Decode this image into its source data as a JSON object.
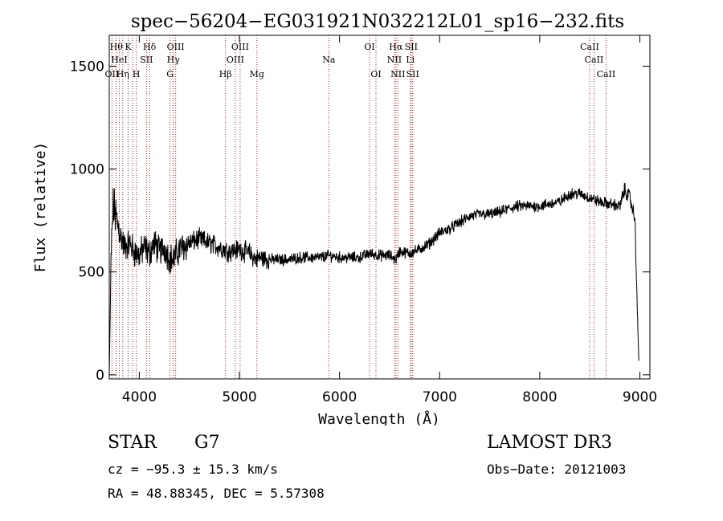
{
  "chart_data": {
    "type": "line",
    "title": "spec−56204−EG031921N032212L01_sp16−232.fits",
    "xlabel": "Wavelength (Å)",
    "ylabel": "Flux (relative)",
    "xlim": [
      3700,
      9100
    ],
    "ylim": [
      -20,
      1650
    ],
    "xticks": [
      4000,
      5000,
      6000,
      7000,
      8000,
      9000
    ],
    "yticks": [
      0,
      500,
      1000,
      1500
    ],
    "series": [
      {
        "name": "flux",
        "x": [
          3700,
          3720,
          3740,
          3760,
          3800,
          3850,
          3900,
          3950,
          4000,
          4050,
          4100,
          4150,
          4200,
          4250,
          4300,
          4340,
          4400,
          4500,
          4600,
          4700,
          4800,
          4900,
          5000,
          5100,
          5170,
          5200,
          5300,
          5400,
          5500,
          5600,
          5700,
          5800,
          5900,
          6000,
          6100,
          6200,
          6300,
          6400,
          6500,
          6563,
          6600,
          6700,
          6800,
          6900,
          7000,
          7100,
          7200,
          7300,
          7400,
          7500,
          7600,
          7700,
          7800,
          7900,
          8000,
          8100,
          8200,
          8300,
          8400,
          8500,
          8600,
          8700,
          8800,
          8850,
          8900,
          8950,
          8990
        ],
        "y": [
          0,
          600,
          820,
          780,
          700,
          620,
          640,
          600,
          580,
          620,
          590,
          640,
          600,
          620,
          570,
          560,
          610,
          640,
          660,
          640,
          620,
          600,
          610,
          590,
          560,
          570,
          560,
          560,
          560,
          570,
          570,
          570,
          580,
          570,
          570,
          570,
          590,
          580,
          580,
          560,
          600,
          590,
          610,
          640,
          690,
          710,
          740,
          770,
          780,
          780,
          790,
          810,
          820,
          820,
          820,
          830,
          840,
          880,
          880,
          860,
          840,
          830,
          820,
          900,
          860,
          760,
          50
        ],
        "noise": 45
      }
    ],
    "lines": [
      {
        "wl": 3727,
        "row": 3,
        "label": "OII"
      },
      {
        "wl": 3770,
        "row": 1,
        "label": "Hθ"
      },
      {
        "wl": 3800,
        "row": 2,
        "label": "HeI"
      },
      {
        "wl": 3835,
        "row": 3,
        "label": "Hη"
      },
      {
        "wl": 3889,
        "row": 1,
        "label": "K"
      },
      {
        "wl": 3934,
        "row": 1,
        "label": ""
      },
      {
        "wl": 3970,
        "row": 3,
        "label": "H"
      },
      {
        "wl": 4072,
        "row": 2,
        "label": "SII"
      },
      {
        "wl": 4102,
        "row": 1,
        "label": "Hδ"
      },
      {
        "wl": 4307,
        "row": 3,
        "label": "G"
      },
      {
        "wl": 4340,
        "row": 2,
        "label": "Hγ"
      },
      {
        "wl": 4363,
        "row": 1,
        "label": "OIII"
      },
      {
        "wl": 4861,
        "row": 3,
        "label": "Hβ"
      },
      {
        "wl": 4959,
        "row": 2,
        "label": "OIII"
      },
      {
        "wl": 5007,
        "row": 1,
        "label": "OIII"
      },
      {
        "wl": 5175,
        "row": 3,
        "label": "Mg"
      },
      {
        "wl": 5893,
        "row": 2,
        "label": "Na"
      },
      {
        "wl": 6300,
        "row": 1,
        "label": "OI"
      },
      {
        "wl": 6364,
        "row": 3,
        "label": "OI"
      },
      {
        "wl": 6548,
        "row": 2,
        "label": "NII"
      },
      {
        "wl": 6563,
        "row": 1,
        "label": "Hα"
      },
      {
        "wl": 6583,
        "row": 3,
        "label": "NII"
      },
      {
        "wl": 6707,
        "row": 2,
        "label": "Li"
      },
      {
        "wl": 6716,
        "row": 1,
        "label": "SII"
      },
      {
        "wl": 6731,
        "row": 3,
        "label": "SII"
      },
      {
        "wl": 8498,
        "row": 1,
        "label": "CaII"
      },
      {
        "wl": 8542,
        "row": 2,
        "label": "CaII"
      },
      {
        "wl": 8662,
        "row": 3,
        "label": "CaII"
      }
    ]
  },
  "info": {
    "class_label": "STAR",
    "subclass": "G7",
    "survey": "LAMOST DR3",
    "cz": "cz = −95.3 ± 15.3 km/s",
    "obs_date": "Obs−Date: 20121003",
    "coords": "RA =  48.88345, DEC =   5.57308"
  }
}
